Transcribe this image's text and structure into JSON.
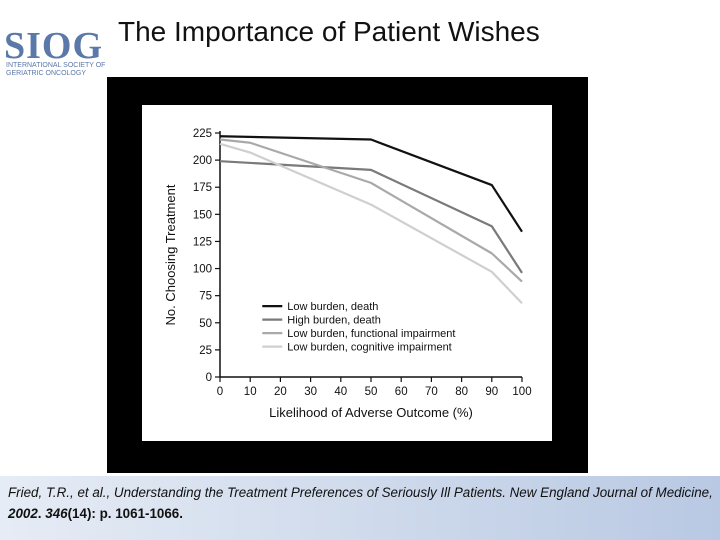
{
  "slide": {
    "title": "The Importance of Patient Wishes",
    "logo": {
      "main": "SIOG",
      "sub": "International Society of Geriatric Oncology"
    }
  },
  "citation": {
    "authors_title": "Fried, T.R., et al., Understanding the Treatment Preferences of Seriously Ill Patients. New England Journal of Medicine",
    "comma1": ", ",
    "year": "2002",
    "dot": ". ",
    "volume": "346",
    "issue": "(14)",
    "pages": ": p. 1061-1066."
  },
  "colors": {
    "background": "#ffffff",
    "frame": "#000000",
    "citation_bar_left": "#e6ecf5",
    "citation_bar_right": "#b9c9e3",
    "logo": "#5a78a8"
  },
  "chart_data": {
    "type": "line",
    "title": "",
    "xlabel": "Likelihood of Adverse Outcome (%)",
    "ylabel": "No. Choosing Treatment",
    "xlim": [
      0,
      100
    ],
    "ylim": [
      0,
      225
    ],
    "xticks": [
      0,
      10,
      20,
      30,
      40,
      50,
      60,
      70,
      80,
      90,
      100
    ],
    "yticks": [
      0,
      25,
      50,
      75,
      100,
      125,
      150,
      175,
      200,
      225
    ],
    "legend_position": "bottom-center",
    "series": [
      {
        "name": "Low burden, death",
        "color": "#111111",
        "x": [
          0,
          50,
          90,
          100
        ],
        "y": [
          222,
          219,
          177,
          134
        ]
      },
      {
        "name": "High burden, death",
        "color": "#7a7a7a",
        "x": [
          0,
          50,
          90,
          100
        ],
        "y": [
          199,
          191,
          139,
          96
        ]
      },
      {
        "name": "Low burden, functional impairment",
        "color": "#a9a9a9",
        "x": [
          0,
          10,
          50,
          90,
          100
        ],
        "y": [
          219,
          216,
          179,
          114,
          88
        ]
      },
      {
        "name": "Low burden, cognitive impairment",
        "color": "#cfcfcf",
        "x": [
          0,
          10,
          50,
          90,
          100
        ],
        "y": [
          215,
          207,
          159,
          97,
          68
        ]
      }
    ]
  }
}
